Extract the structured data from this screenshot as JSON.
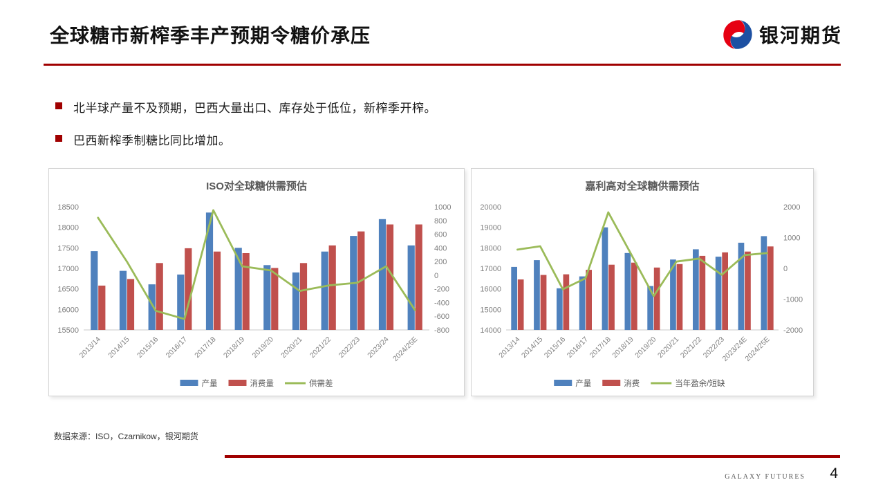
{
  "header": {
    "title": "全球糖市新榨季丰产预期令糖价承压",
    "logo_text": "银河期货"
  },
  "bullets": [
    "北半球产量不及预期，巴西大量出口、库存处于低位，新榨季开榨。",
    "巴西新榨季制糖比同比增加。"
  ],
  "source_note": "数据来源：ISO，Czarnikow，银河期货",
  "footer": {
    "brand": "GALAXY FUTURES",
    "page_number": "4"
  },
  "colors": {
    "accent_red": "#A00000",
    "logo_red": "#E60012",
    "logo_blue": "#1D50A2",
    "bar_blue": "#4F81BD",
    "bar_red": "#C0504D",
    "line_green": "#9BBB59"
  },
  "chart_data": [
    {
      "type": "bar",
      "subtype": "bar+line combo, dual axis",
      "title": "ISO对全球糖供需预估",
      "categories": [
        "2013/14",
        "2014/15",
        "2015/16",
        "2016/17",
        "2017/18",
        "2018/19",
        "2019/20",
        "2020/21",
        "2021/22",
        "2022/23",
        "2023/24",
        "2024/25E"
      ],
      "bar_series": [
        {
          "name": "产量",
          "color": "#4F81BD",
          "axis": "left",
          "values": [
            17420,
            16940,
            16610,
            16850,
            18360,
            17500,
            17080,
            16900,
            17410,
            17790,
            18200,
            17560
          ]
        },
        {
          "name": "消费量",
          "color": "#C0504D",
          "axis": "left",
          "values": [
            16580,
            16740,
            17130,
            17490,
            17410,
            17370,
            17010,
            17130,
            17560,
            17900,
            18070,
            18070
          ]
        }
      ],
      "line_series": [
        {
          "name": "供需差",
          "color": "#9BBB59",
          "axis": "right",
          "values": [
            840,
            200,
            -520,
            -640,
            950,
            130,
            70,
            -230,
            -150,
            -110,
            130,
            -510
          ]
        }
      ],
      "left_axis": {
        "min": 15500,
        "max": 18500,
        "step": 500
      },
      "right_axis": {
        "min": -800,
        "max": 1000,
        "step": 200
      },
      "grid": false,
      "legend_position": "bottom"
    },
    {
      "type": "bar",
      "subtype": "bar+line combo, dual axis",
      "title": "嘉利高对全球糖供需预估",
      "categories": [
        "2013/14",
        "2014/15",
        "2015/16",
        "2016/17",
        "2017/18",
        "2018/19",
        "2019/20",
        "2020/21",
        "2021/22",
        "2022/23",
        "2023/24E",
        "2024/25E"
      ],
      "bar_series": [
        {
          "name": "产量",
          "color": "#4F81BD",
          "axis": "left",
          "values": [
            17070,
            17400,
            16030,
            16610,
            19000,
            17750,
            16140,
            17430,
            17930,
            17570,
            18250,
            18570
          ]
        },
        {
          "name": "消费",
          "color": "#C0504D",
          "axis": "left",
          "values": [
            16460,
            16680,
            16710,
            16930,
            17180,
            17280,
            17040,
            17210,
            17610,
            17780,
            17820,
            18070
          ]
        }
      ],
      "line_series": [
        {
          "name": "当年盈余/短缺",
          "color": "#9BBB59",
          "axis": "right",
          "values": [
            610,
            720,
            -680,
            -320,
            1820,
            470,
            -900,
            220,
            320,
            -210,
            430,
            500
          ]
        }
      ],
      "left_axis": {
        "min": 14000,
        "max": 20000,
        "step": 1000
      },
      "right_axis": {
        "min": -2000,
        "max": 2000,
        "step": 1000
      },
      "grid": false,
      "legend_position": "bottom"
    }
  ]
}
